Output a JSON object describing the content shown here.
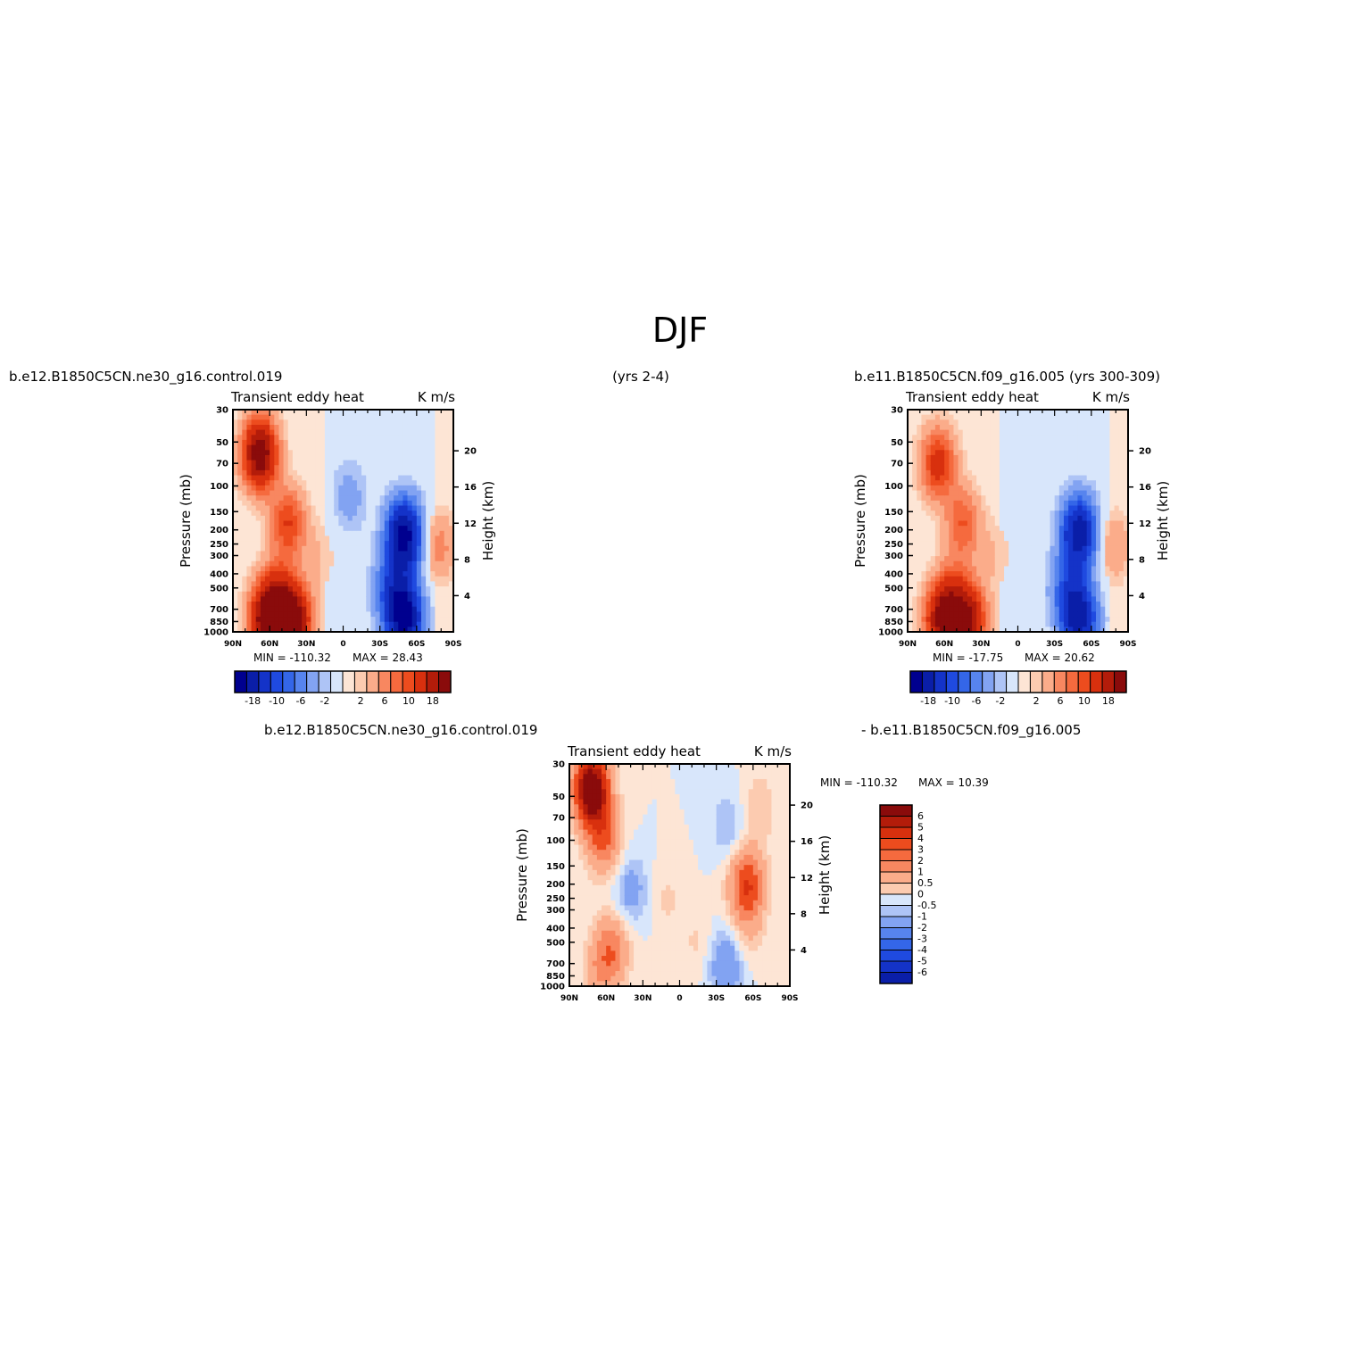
{
  "figure": {
    "title": "DJF",
    "top_left_caption": "b.e12.B1850C5CN.ne30_g16.control.019",
    "top_middle_caption": "(yrs 2-4)",
    "top_right_caption": "b.e11.B1850C5CN.f09_g16.005 (yrs 300-309)",
    "bottom_left_caption": "b.e12.B1850C5CN.ne30_g16.control.019",
    "bottom_right_caption": "- b.e11.B1850C5CN.f09_g16.005"
  },
  "chart_data": [
    {
      "type": "heatmap",
      "panel": "ctrl-ne30",
      "left_title": "Transient eddy heat",
      "right_title": "K m/s",
      "ylabel": "Pressure (mb)",
      "ylabel_right": "Height (km)",
      "x_ticks": [
        "90N",
        "60N",
        "30N",
        "0",
        "30S",
        "60S",
        "90S"
      ],
      "x_range": [
        90,
        -90
      ],
      "y_ticks": [
        30,
        50,
        70,
        100,
        150,
        200,
        250,
        300,
        400,
        500,
        700,
        850,
        1000
      ],
      "y_range": [
        30,
        1000
      ],
      "y_scale": "log",
      "height_ticks": [
        4,
        8,
        12,
        16,
        20
      ],
      "min_label": "MIN = -110.32",
      "max_label": "MAX = 28.43",
      "colorbar_orientation": "horizontal",
      "colorbar_labels": [
        "-18",
        "-10",
        "-6",
        "-2",
        "2",
        "6",
        "10",
        "18"
      ],
      "features": [
        {
          "lat": 68,
          "p": 60,
          "value": 22
        },
        {
          "lat": 45,
          "p": 180,
          "value": 10
        },
        {
          "lat": 62,
          "p": 820,
          "value": 22
        },
        {
          "lat": 40,
          "p": 840,
          "value": 20
        },
        {
          "lat": 52,
          "p": 550,
          "value": 9
        },
        {
          "lat": 20,
          "p": 300,
          "value": 2
        },
        {
          "lat": -50,
          "p": 220,
          "value": -20
        },
        {
          "lat": -50,
          "p": 800,
          "value": -20
        },
        {
          "lat": -40,
          "p": 500,
          "value": -8
        },
        {
          "lat": -5,
          "p": 120,
          "value": -3
        },
        {
          "lat": -78,
          "p": 260,
          "value": 5
        }
      ]
    },
    {
      "type": "heatmap",
      "panel": "ctrl-f09",
      "left_title": "Transient eddy heat",
      "right_title": "K m/s",
      "ylabel": "Pressure (mb)",
      "ylabel_right": "Height (km)",
      "x_ticks": [
        "90N",
        "60N",
        "30N",
        "0",
        "30S",
        "60S",
        "90S"
      ],
      "x_range": [
        90,
        -90
      ],
      "y_ticks": [
        30,
        50,
        70,
        100,
        150,
        200,
        250,
        300,
        400,
        500,
        700,
        850,
        1000
      ],
      "y_range": [
        30,
        1000
      ],
      "y_scale": "log",
      "height_ticks": [
        4,
        8,
        12,
        16,
        20
      ],
      "min_label": "MIN = -17.75",
      "max_label": "MAX = 20.62",
      "colorbar_orientation": "horizontal",
      "colorbar_labels": [
        "-18",
        "-10",
        "-6",
        "-2",
        "2",
        "6",
        "10",
        "18"
      ],
      "features": [
        {
          "lat": 65,
          "p": 70,
          "value": 12
        },
        {
          "lat": 45,
          "p": 180,
          "value": 8
        },
        {
          "lat": 62,
          "p": 820,
          "value": 18
        },
        {
          "lat": 40,
          "p": 840,
          "value": 17
        },
        {
          "lat": 52,
          "p": 550,
          "value": 7
        },
        {
          "lat": 20,
          "p": 300,
          "value": 2
        },
        {
          "lat": -50,
          "p": 210,
          "value": -17
        },
        {
          "lat": -50,
          "p": 800,
          "value": -16
        },
        {
          "lat": -40,
          "p": 500,
          "value": -6
        },
        {
          "lat": -78,
          "p": 260,
          "value": 4
        }
      ]
    },
    {
      "type": "heatmap",
      "panel": "difference",
      "left_title": "Transient eddy heat",
      "right_title": "K m/s",
      "ylabel": "Pressure (mb)",
      "ylabel_right": "Height (km)",
      "x_ticks": [
        "90N",
        "60N",
        "30N",
        "0",
        "30S",
        "60S",
        "90S"
      ],
      "x_range": [
        90,
        -90
      ],
      "y_ticks": [
        30,
        50,
        70,
        100,
        150,
        200,
        250,
        300,
        400,
        500,
        700,
        850,
        1000
      ],
      "y_range": [
        30,
        1000
      ],
      "y_scale": "log",
      "height_ticks": [
        4,
        8,
        12,
        16,
        20
      ],
      "min_label": "MIN = -110.32",
      "max_label": "MAX = 10.39",
      "colorbar_orientation": "vertical",
      "colorbar_labels": [
        "6",
        "5",
        "4",
        "3",
        "2",
        "1",
        "0.5",
        "0",
        "-0.5",
        "-1",
        "-2",
        "-3",
        "-4",
        "-5",
        "-6"
      ],
      "features": [
        {
          "lat": 72,
          "p": 45,
          "value": 8
        },
        {
          "lat": 62,
          "p": 100,
          "value": 3
        },
        {
          "lat": 55,
          "p": 550,
          "value": 2.5
        },
        {
          "lat": 65,
          "p": 800,
          "value": 1.5
        },
        {
          "lat": -55,
          "p": 200,
          "value": 4
        },
        {
          "lat": -55,
          "p": 400,
          "value": 1
        },
        {
          "lat": -65,
          "p": 60,
          "value": 1
        },
        {
          "lat": 40,
          "p": 220,
          "value": -1.5
        },
        {
          "lat": -38,
          "p": 700,
          "value": -2
        },
        {
          "lat": -40,
          "p": 80,
          "value": -1
        },
        {
          "lat": 10,
          "p": 250,
          "value": 0.6
        },
        {
          "lat": -15,
          "p": 500,
          "value": 0.6
        }
      ]
    }
  ],
  "colors": {
    "negative": [
      "#00008f",
      "#0a1ea8",
      "#1433c8",
      "#1f4ae0",
      "#3466e8",
      "#5784ee",
      "#82a3f2",
      "#aec4f6",
      "#d8e6fb"
    ],
    "positive": [
      "#fde5d5",
      "#fccbb0",
      "#fbac8a",
      "#f88760",
      "#f56a3e",
      "#ed4c1e",
      "#d8300e",
      "#b31c0a",
      "#8a0b0b"
    ],
    "neutral": "#ffffff"
  }
}
